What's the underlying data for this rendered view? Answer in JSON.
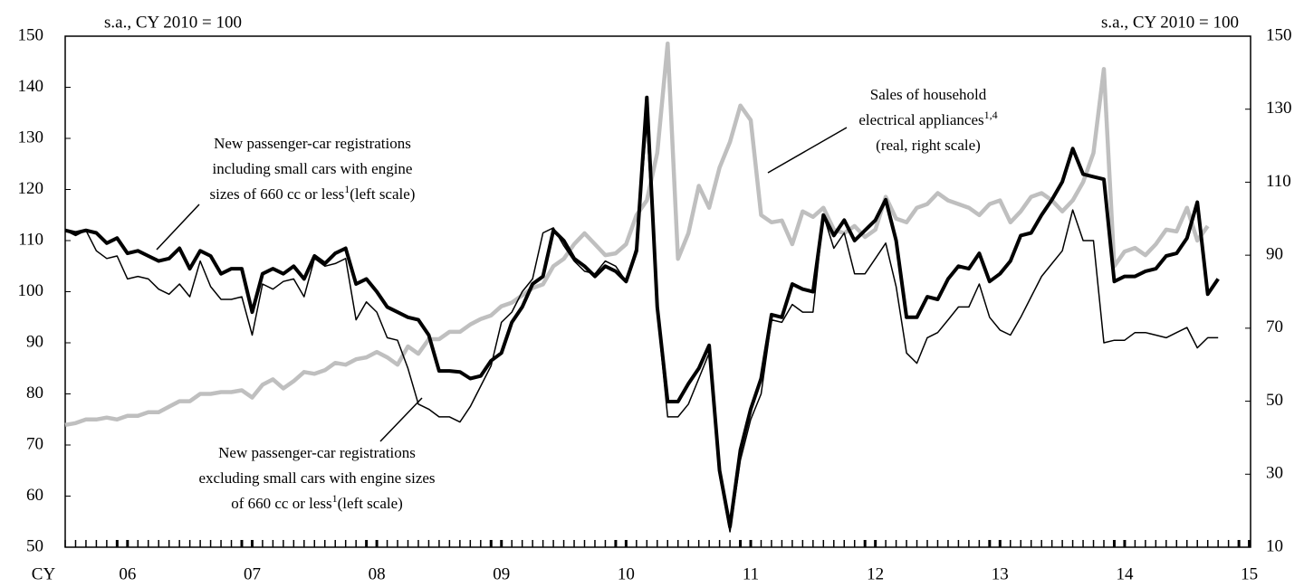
{
  "chart_data": {
    "type": "line",
    "subtitle_left": "s.a., CY 2010 = 100",
    "subtitle_right": "s.a., CY 2010 = 100",
    "categories": [
      "CY",
      null,
      null,
      null,
      null,
      null,
      "06",
      null,
      null,
      null,
      null,
      null,
      null,
      null,
      null,
      null,
      null,
      null,
      "07",
      null,
      null,
      null,
      null,
      null,
      null,
      null,
      null,
      null,
      null,
      null,
      "08",
      null,
      null,
      null,
      null,
      null,
      null,
      null,
      null,
      null,
      null,
      null,
      "09",
      null,
      null,
      null,
      null,
      null,
      null,
      null,
      null,
      null,
      null,
      null,
      "10",
      null,
      null,
      null,
      null,
      null,
      null,
      null,
      null,
      null,
      null,
      null,
      "11",
      null,
      null,
      null,
      null,
      null,
      null,
      null,
      null,
      null,
      null,
      null,
      "12",
      null,
      null,
      null,
      null,
      null,
      null,
      null,
      null,
      null,
      null,
      null,
      "13",
      null,
      null,
      null,
      null,
      null,
      null,
      null,
      null,
      null,
      null,
      null,
      "14",
      null,
      null,
      null,
      null,
      null,
      null,
      null,
      null,
      null,
      null,
      null,
      "15"
    ],
    "ylim": [
      50,
      150
    ],
    "yticks": [
      50,
      60,
      70,
      80,
      90,
      100,
      110,
      120,
      130,
      140,
      150
    ],
    "y2lim": [
      10,
      150
    ],
    "y2ticks": [
      10,
      30,
      50,
      70,
      90,
      110,
      130,
      150
    ],
    "series": [
      {
        "color": "#000000",
        "values": [
          112,
          111.5,
          112,
          111.5,
          109.5,
          110.5,
          107.5,
          108,
          107,
          106,
          106.5,
          108.5,
          104.5,
          108,
          107,
          103.5,
          104.5,
          104.5,
          96,
          103.5,
          104.5,
          103.5,
          105,
          102.5,
          107,
          105.5,
          107.5,
          108.5,
          101.5,
          102.5,
          100,
          97,
          96,
          95,
          94.5,
          91.5,
          84.5,
          84.5,
          84.3,
          83,
          83.5,
          86.5,
          88,
          94,
          97,
          101.5,
          103,
          112,
          110,
          106.5,
          105,
          103,
          105,
          104,
          102,
          108,
          138,
          97,
          78.5,
          78.5,
          82,
          85,
          89.5,
          65,
          54,
          69,
          77,
          83,
          95.5,
          95,
          101.5,
          100.5,
          100,
          115,
          111,
          114,
          110,
          112,
          114,
          118,
          110,
          95,
          95,
          99,
          98.5,
          102.5,
          105,
          104.5,
          107.5,
          102,
          103.5,
          106,
          111,
          111.5,
          115,
          118,
          121.5,
          128,
          123,
          122.5,
          122,
          102,
          103,
          103,
          104,
          104.5,
          107,
          107.5,
          110.5,
          117.5,
          99.5,
          102.5,
          null,
          null,
          null
        ]
      },
      {
        "color": "#000000",
        "values": [
          112,
          111,
          112,
          108,
          106.5,
          107,
          102.5,
          103,
          102.5,
          100.5,
          99.5,
          101.5,
          99,
          106,
          101,
          98.5,
          98.5,
          99,
          91.5,
          101.5,
          100.5,
          102,
          102.5,
          99,
          106.5,
          105,
          105.5,
          106.5,
          94.5,
          98,
          96,
          91,
          90.5,
          85,
          78,
          77,
          75.5,
          75.5,
          74.5,
          77.5,
          81.5,
          85.5,
          94,
          96,
          100,
          102.5,
          111.5,
          112.5,
          109,
          106,
          104,
          103.5,
          106,
          105,
          102,
          109,
          133,
          96,
          75.5,
          75.5,
          78,
          83,
          88,
          64,
          53,
          67,
          75,
          80,
          94.5,
          94,
          97.5,
          96,
          96,
          115,
          108.5,
          111.5,
          103.5,
          103.5,
          106.5,
          109.5,
          101,
          88,
          86,
          91,
          92,
          94.5,
          97,
          97,
          101.5,
          95,
          92.5,
          91.5,
          95,
          99,
          103,
          105.5,
          108,
          116,
          110,
          110,
          90,
          90.5,
          90.5,
          92,
          92,
          91.5,
          91,
          92,
          93,
          89,
          91,
          91,
          null,
          null,
          null
        ]
      },
      {
        "color": "#bfbfbf",
        "axis": "y2",
        "values": [
          43.5,
          44,
          45,
          45,
          45.5,
          45,
          46,
          46,
          47,
          47,
          48.5,
          50,
          50,
          52,
          52,
          52.5,
          52.5,
          53,
          51,
          54.5,
          56,
          53.5,
          55.5,
          58,
          57.5,
          58.5,
          60.5,
          60,
          61.5,
          62,
          63.5,
          62,
          60,
          65,
          63,
          67,
          67,
          69,
          69,
          71,
          72.5,
          73.5,
          76,
          77,
          79,
          81,
          82,
          87,
          89,
          93,
          96,
          93,
          90,
          90.5,
          93,
          101,
          105,
          118,
          148,
          89,
          96,
          109,
          103,
          114,
          121,
          131,
          127,
          101,
          99,
          99.5,
          93,
          102,
          100.5,
          103,
          97,
          96,
          98,
          95,
          97,
          106,
          100,
          99,
          103,
          104,
          107,
          105,
          104,
          103,
          101,
          104,
          105,
          99,
          102,
          106,
          107,
          105,
          102,
          105,
          110,
          118,
          141,
          87,
          91,
          92,
          90,
          93,
          97,
          96.5,
          103,
          94,
          98,
          null,
          null,
          null,
          null
        ]
      }
    ],
    "annotations": [
      {
        "lines": [
          {
            "text": "New passenger-car registrations"
          },
          {
            "text": "including small cars with engine"
          },
          {
            "text": "sizes of 660 cc or less",
            "sup": "1",
            "after": "(left scale)"
          }
        ]
      },
      {
        "lines": [
          {
            "text": "New passenger-car registrations"
          },
          {
            "text": "excluding small cars with engine sizes"
          },
          {
            "text": "of 660 cc or less",
            "sup": "1",
            "after": "(left scale)"
          }
        ]
      },
      {
        "lines": [
          {
            "text": "Sales of household"
          },
          {
            "text": "electrical appliances",
            "sup": "1,4"
          },
          {
            "text": " (real, right scale)"
          }
        ]
      }
    ]
  }
}
